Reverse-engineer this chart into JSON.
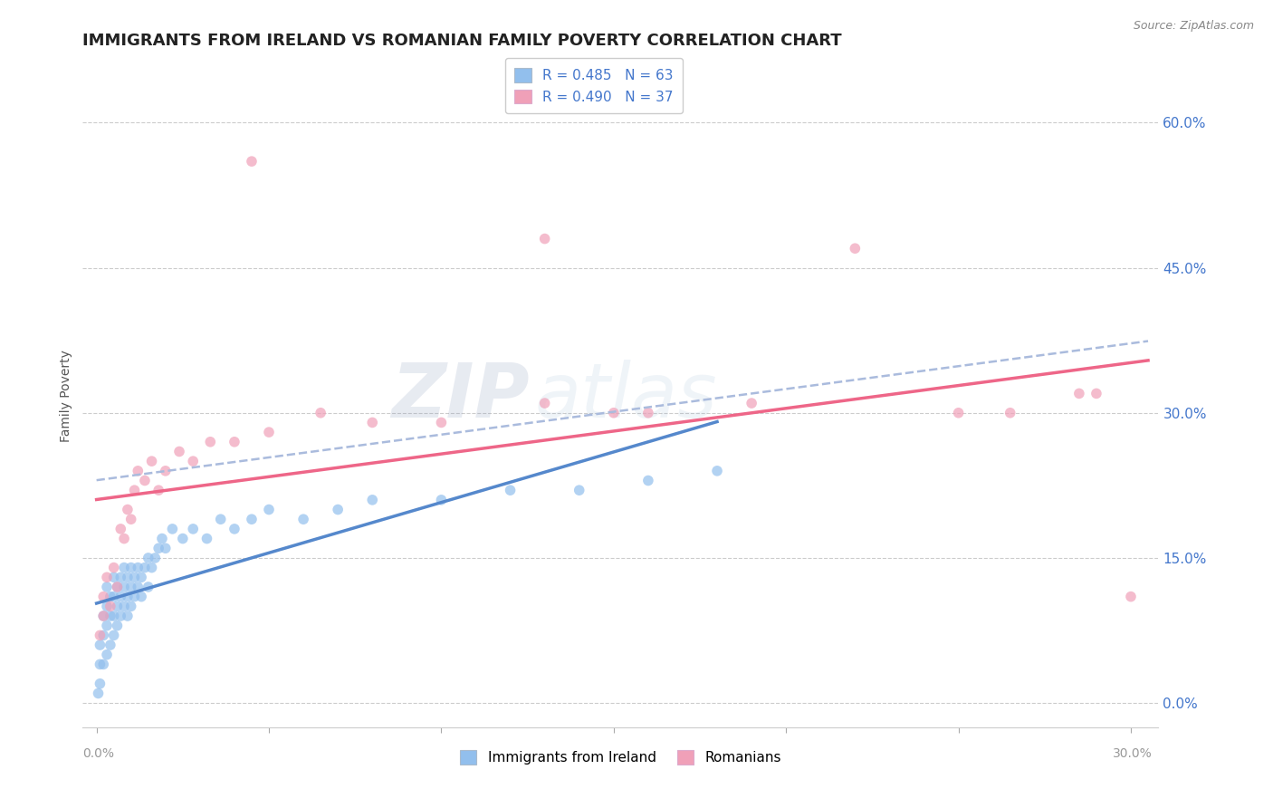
{
  "title": "IMMIGRANTS FROM IRELAND VS ROMANIAN FAMILY POVERTY CORRELATION CHART",
  "source": "Source: ZipAtlas.com",
  "ylabel": "Family Poverty",
  "r_ireland": "R = 0.485",
  "n_ireland": "N = 63",
  "r_romanians": "R = 0.490",
  "n_romanians": "N = 37",
  "color_ireland": "#92BFED",
  "color_romanians": "#F0A0B8",
  "color_trendline_ireland": "#5588CC",
  "color_trendline_romanians": "#EE6688",
  "color_trendline_dashed": "#AABBDD",
  "legend_ireland": "Immigrants from Ireland",
  "legend_romanians": "Romanians",
  "watermark_zip": "ZIP",
  "watermark_atlas": "atlas",
  "background_color": "#FFFFFF",
  "xlim": [
    -0.004,
    0.308
  ],
  "ylim": [
    -0.025,
    0.66
  ],
  "ytick_values": [
    0.0,
    0.15,
    0.3,
    0.45,
    0.6
  ],
  "ytick_labels": [
    "0.0%",
    "15.0%",
    "30.0%",
    "45.0%",
    "60.0%"
  ],
  "ireland_x": [
    0.0005,
    0.001,
    0.001,
    0.001,
    0.002,
    0.002,
    0.002,
    0.003,
    0.003,
    0.003,
    0.003,
    0.004,
    0.004,
    0.004,
    0.005,
    0.005,
    0.005,
    0.005,
    0.006,
    0.006,
    0.006,
    0.007,
    0.007,
    0.007,
    0.008,
    0.008,
    0.008,
    0.009,
    0.009,
    0.009,
    0.01,
    0.01,
    0.01,
    0.011,
    0.011,
    0.012,
    0.012,
    0.013,
    0.013,
    0.014,
    0.015,
    0.015,
    0.016,
    0.017,
    0.018,
    0.019,
    0.02,
    0.022,
    0.025,
    0.028,
    0.032,
    0.036,
    0.04,
    0.045,
    0.05,
    0.06,
    0.07,
    0.08,
    0.1,
    0.12,
    0.14,
    0.16,
    0.18
  ],
  "ireland_y": [
    0.01,
    0.02,
    0.04,
    0.06,
    0.04,
    0.07,
    0.09,
    0.05,
    0.08,
    0.1,
    0.12,
    0.06,
    0.09,
    0.11,
    0.07,
    0.09,
    0.11,
    0.13,
    0.08,
    0.1,
    0.12,
    0.09,
    0.11,
    0.13,
    0.1,
    0.12,
    0.14,
    0.09,
    0.11,
    0.13,
    0.1,
    0.12,
    0.14,
    0.11,
    0.13,
    0.12,
    0.14,
    0.11,
    0.13,
    0.14,
    0.12,
    0.15,
    0.14,
    0.15,
    0.16,
    0.17,
    0.16,
    0.18,
    0.17,
    0.18,
    0.17,
    0.19,
    0.18,
    0.19,
    0.2,
    0.19,
    0.2,
    0.21,
    0.21,
    0.22,
    0.22,
    0.23,
    0.24
  ],
  "romanian_x": [
    0.001,
    0.002,
    0.002,
    0.003,
    0.004,
    0.005,
    0.006,
    0.007,
    0.008,
    0.009,
    0.01,
    0.011,
    0.012,
    0.014,
    0.016,
    0.018,
    0.02,
    0.024,
    0.028,
    0.033,
    0.04,
    0.05,
    0.065,
    0.08,
    0.1,
    0.13,
    0.16,
    0.19,
    0.22,
    0.25,
    0.265,
    0.285,
    0.3,
    0.13,
    0.045,
    0.29,
    0.15
  ],
  "romanian_y": [
    0.07,
    0.09,
    0.11,
    0.13,
    0.1,
    0.14,
    0.12,
    0.18,
    0.17,
    0.2,
    0.19,
    0.22,
    0.24,
    0.23,
    0.25,
    0.22,
    0.24,
    0.26,
    0.25,
    0.27,
    0.27,
    0.28,
    0.3,
    0.29,
    0.29,
    0.31,
    0.3,
    0.31,
    0.47,
    0.3,
    0.3,
    0.32,
    0.11,
    0.48,
    0.56,
    0.32,
    0.3
  ],
  "title_fontsize": 13,
  "tick_fontsize": 10,
  "legend_fontsize": 11,
  "watermark_fontsize": 60,
  "watermark_alpha": 0.13
}
